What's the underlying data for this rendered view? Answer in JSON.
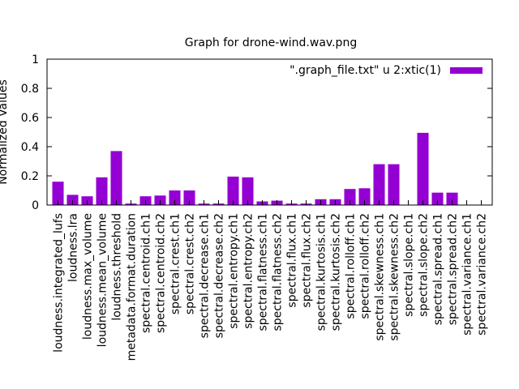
{
  "chart_data": {
    "type": "bar",
    "title": "Graph for drone-wind.wav.png",
    "xlabel": "",
    "ylabel": "Normalized Values",
    "ylim": [
      0,
      1
    ],
    "yticks": [
      "0",
      "0.2",
      "0.4",
      "0.6",
      "0.8",
      "1"
    ],
    "grid": false,
    "legend_position": "top-right",
    "bar_color": "#9400d3",
    "categories": [
      "loudness.integrated_lufs",
      "loudness.lra",
      "loudness.max_volume",
      "loudness.mean_volume",
      "loudness.threshold",
      "metadata.format.duration",
      "spectral.centroid.ch1",
      "spectral.centroid.ch2",
      "spectral.crest.ch1",
      "spectral.crest.ch2",
      "spectral.decrease.ch1",
      "spectral.decrease.ch2",
      "spectral.entropy.ch1",
      "spectral.entropy.ch2",
      "spectral.flatness.ch1",
      "spectral.flatness.ch2",
      "spectral.flux.ch1",
      "spectral.flux.ch2",
      "spectral.kurtosis.ch1",
      "spectral.kurtosis.ch2",
      "spectral.rolloff.ch1",
      "spectral.rolloff.ch2",
      "spectral.skewness.ch1",
      "spectral.skewness.ch2",
      "spectral.slope.ch1",
      "spectral.slope.ch2",
      "spectral.spread.ch1",
      "spectral.spread.ch2",
      "spectral.variance.ch1",
      "spectral.variance.ch2"
    ],
    "series": [
      {
        "name": "\".graph_file.txt\" u 2:xtic(1)",
        "values": [
          0.16,
          0.07,
          0.06,
          0.19,
          0.37,
          0.01,
          0.06,
          0.065,
          0.1,
          0.1,
          0.01,
          0.01,
          0.195,
          0.19,
          0.025,
          0.03,
          0.01,
          0.01,
          0.04,
          0.04,
          0.11,
          0.115,
          0.28,
          0.28,
          0.0,
          0.495,
          0.085,
          0.085,
          0.0,
          0.0
        ]
      }
    ]
  }
}
